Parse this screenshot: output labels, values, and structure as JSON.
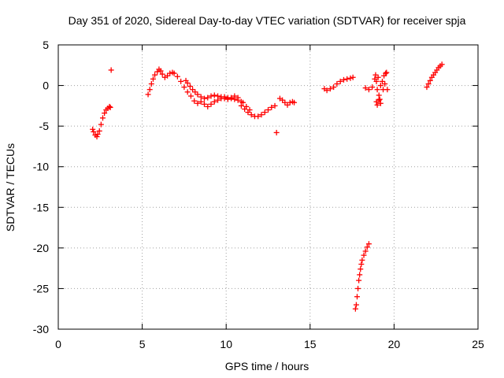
{
  "chart_data": {
    "type": "scatter",
    "title": "Day 351 of 2020, Sidereal Day-to-day VTEC variation (SDTVAR) for receiver spja",
    "xlabel": "GPS time / hours",
    "ylabel": "SDTVAR / TECUs",
    "xlim": [
      0,
      25
    ],
    "ylim": [
      -30,
      5
    ],
    "xticks": [
      0,
      5,
      10,
      15,
      20,
      25
    ],
    "yticks": [
      5,
      0,
      -5,
      -10,
      -15,
      -20,
      -25,
      -30
    ],
    "grid": true,
    "marker": "+",
    "color": "#ff0000",
    "series": [
      {
        "name": "SDTVAR",
        "x": [
          2.05,
          2.1,
          2.2,
          2.3,
          2.35,
          2.45,
          2.55,
          2.65,
          2.75,
          2.85,
          2.95,
          3.05,
          3.1,
          3.15,
          5.35,
          5.45,
          5.55,
          5.65,
          5.75,
          5.9,
          6.0,
          6.1,
          6.2,
          6.35,
          6.5,
          6.65,
          6.8,
          6.9,
          7.1,
          7.3,
          7.5,
          7.6,
          7.7,
          7.85,
          8.0,
          8.15,
          8.3,
          8.5,
          8.7,
          8.9,
          9.1,
          9.3,
          9.5,
          9.7,
          9.9,
          10.1,
          10.3,
          10.5,
          10.7,
          10.9,
          7.7,
          7.9,
          8.1,
          8.3,
          8.5,
          8.7,
          8.9,
          9.1,
          9.3,
          9.5,
          9.7,
          9.9,
          10.1,
          10.3,
          10.5,
          10.7,
          11.0,
          11.2,
          11.4,
          10.9,
          11.1,
          11.3,
          11.5,
          11.7,
          11.9,
          12.1,
          12.3,
          12.5,
          12.7,
          12.9,
          13.0,
          13.2,
          13.35,
          13.5,
          13.65,
          13.8,
          13.95,
          14.05,
          15.85,
          16.0,
          16.2,
          16.4,
          16.6,
          16.8,
          17.0,
          17.2,
          17.4,
          17.55,
          17.7,
          17.75,
          17.8,
          17.85,
          17.9,
          17.95,
          18.0,
          18.05,
          18.1,
          18.2,
          18.3,
          18.4,
          18.5,
          18.3,
          18.5,
          18.7,
          18.85,
          18.9,
          18.95,
          19.0,
          19.05,
          19.1,
          19.15,
          19.2,
          19.3,
          19.35,
          19.4,
          19.45,
          19.5,
          19.55,
          19.6,
          18.95,
          19.0,
          19.1,
          19.2,
          21.95,
          22.05,
          22.15,
          22.25,
          22.35,
          22.45,
          22.55,
          22.65,
          22.75,
          22.85
        ],
        "y": [
          -5.4,
          -5.7,
          -6.1,
          -6.3,
          -6.0,
          -5.6,
          -4.8,
          -4.0,
          -3.4,
          -3.0,
          -2.8,
          -2.6,
          -2.7,
          1.9,
          -1.1,
          -0.5,
          0.2,
          0.8,
          1.3,
          1.7,
          2.0,
          1.8,
          1.4,
          1.0,
          1.2,
          1.5,
          1.6,
          1.5,
          1.1,
          0.5,
          -0.2,
          0.6,
          0.3,
          -0.1,
          -0.5,
          -0.8,
          -1.1,
          -1.4,
          -1.6,
          -1.5,
          -1.3,
          -1.2,
          -1.3,
          -1.4,
          -1.4,
          -1.5,
          -1.6,
          -1.7,
          -1.8,
          -2.0,
          -0.8,
          -1.3,
          -1.9,
          -2.2,
          -2.0,
          -2.3,
          -2.6,
          -2.3,
          -2.0,
          -1.8,
          -1.6,
          -1.6,
          -1.7,
          -1.5,
          -1.3,
          -1.5,
          -2.1,
          -2.6,
          -3.0,
          -2.5,
          -2.9,
          -3.3,
          -3.6,
          -3.8,
          -3.8,
          -3.6,
          -3.3,
          -3.0,
          -2.7,
          -2.5,
          -5.8,
          -1.6,
          -1.8,
          -2.1,
          -2.4,
          -2.1,
          -2.0,
          -2.1,
          -0.4,
          -0.6,
          -0.4,
          -0.2,
          0.2,
          0.5,
          0.7,
          0.8,
          0.9,
          1.0,
          -27.5,
          -27.0,
          -26.0,
          -25.0,
          -24.0,
          -23.3,
          -22.6,
          -22.0,
          -21.5,
          -20.9,
          -20.4,
          -19.9,
          -19.5,
          -0.3,
          -0.5,
          -0.2,
          0.8,
          1.3,
          0.5,
          -0.5,
          1.0,
          -1.2,
          -1.7,
          0.0,
          0.5,
          -0.5,
          1.2,
          0.2,
          1.5,
          1.6,
          -0.5,
          -2.0,
          -2.4,
          -1.8,
          -2.2,
          -0.2,
          0.2,
          0.6,
          1.0,
          1.3,
          1.6,
          1.9,
          2.2,
          2.4,
          2.6
        ]
      }
    ]
  }
}
